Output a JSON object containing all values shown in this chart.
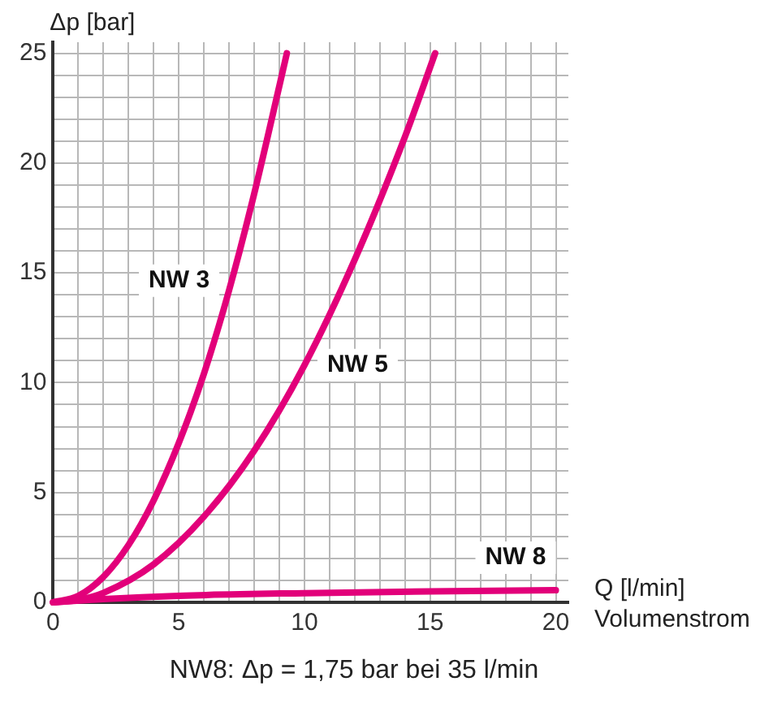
{
  "chart_data": {
    "type": "line",
    "xlabel": "Q [l/min]\nVolumenstrom",
    "ylabel": "Δp [bar]",
    "xlim": [
      0,
      20.5
    ],
    "ylim": [
      0,
      25.5
    ],
    "xticks": [
      0,
      {
        "value": 1,
        "label": null
      },
      {
        "value": 2,
        "label": null
      },
      {
        "value": 3,
        "label": null
      },
      {
        "value": 4,
        "label": null
      },
      5,
      {
        "value": 6,
        "label": null
      },
      {
        "value": 7,
        "label": null
      },
      {
        "value": 8,
        "label": null
      },
      {
        "value": 9,
        "label": null
      },
      10,
      {
        "value": 11,
        "label": null
      },
      {
        "value": 12,
        "label": null
      },
      {
        "value": 13,
        "label": null
      },
      {
        "value": 14,
        "label": null
      },
      15,
      {
        "value": 16,
        "label": null
      },
      {
        "value": 17,
        "label": null
      },
      {
        "value": 18,
        "label": null
      },
      {
        "value": 19,
        "label": null
      },
      20
    ],
    "yticks": [
      0,
      {
        "value": 1,
        "label": null
      },
      {
        "value": 2,
        "label": null
      },
      {
        "value": 3,
        "label": null
      },
      {
        "value": 4,
        "label": null
      },
      5,
      {
        "value": 6,
        "label": null
      },
      {
        "value": 7,
        "label": null
      },
      {
        "value": 8,
        "label": null
      },
      {
        "value": 9,
        "label": null
      },
      10,
      {
        "value": 11,
        "label": null
      },
      {
        "value": 12,
        "label": null
      },
      {
        "value": 13,
        "label": null
      },
      {
        "value": 14,
        "label": null
      },
      15,
      {
        "value": 16,
        "label": null
      },
      {
        "value": 17,
        "label": null
      },
      {
        "value": 18,
        "label": null
      },
      {
        "value": 19,
        "label": null
      },
      20,
      {
        "value": 21,
        "label": null
      },
      {
        "value": 22,
        "label": null
      },
      {
        "value": 23,
        "label": null
      },
      {
        "value": 24,
        "label": null
      },
      25
    ],
    "grid": true,
    "legend": false,
    "marker": "none",
    "line_style": "solid",
    "series": [
      {
        "name": "NW 3",
        "color": "#e2007a",
        "x": [
          0,
          1,
          2,
          3,
          4,
          5,
          6,
          7,
          8,
          9,
          9.3
        ],
        "values": [
          0,
          0.29,
          1.16,
          2.61,
          4.64,
          7.25,
          10.4,
          14.2,
          18.6,
          23.5,
          25
        ]
      },
      {
        "name": "NW 5",
        "color": "#e2007a",
        "x": [
          0,
          1,
          2,
          4,
          6,
          8,
          10,
          12,
          14,
          15.2
        ],
        "values": [
          0,
          0.11,
          0.43,
          1.73,
          3.9,
          6.9,
          10.8,
          15.6,
          21.2,
          25
        ]
      },
      {
        "name": "NW 8",
        "color": "#e2007a",
        "x": [
          0,
          2,
          5,
          10,
          15,
          20
        ],
        "values": [
          0,
          0.15,
          0.3,
          0.42,
          0.5,
          0.55
        ]
      }
    ],
    "annotations": [
      "NW8: Δp = 1,75 bar bei 35 l/min"
    ]
  }
}
